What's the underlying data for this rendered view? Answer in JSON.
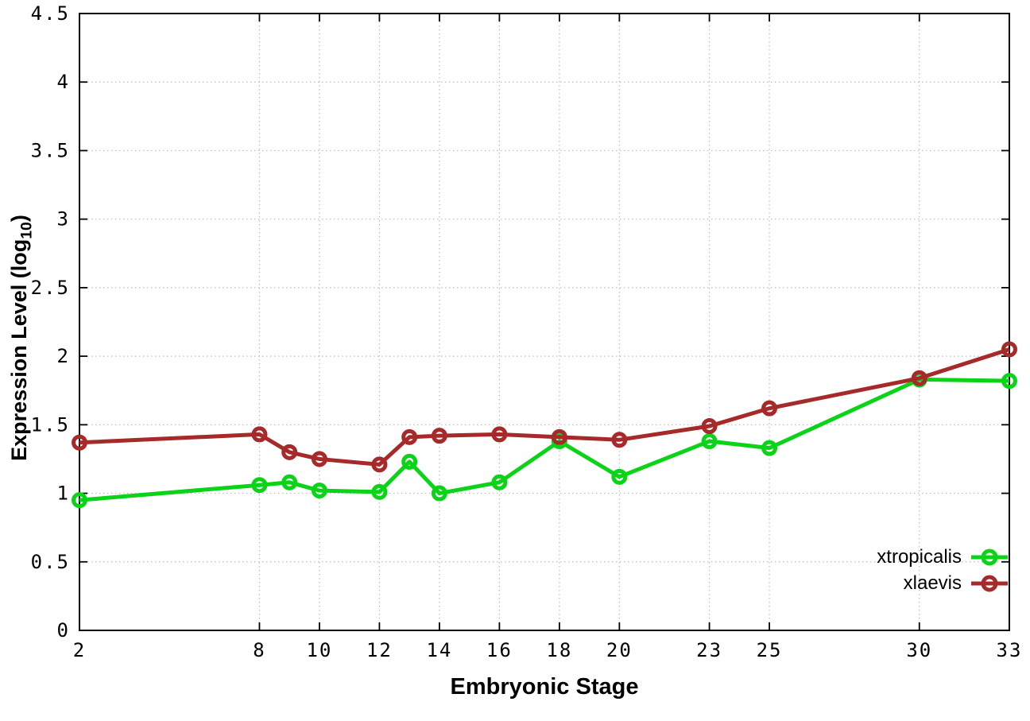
{
  "chart_data": {
    "type": "line",
    "title": "",
    "xlabel": "Embryonic Stage",
    "ylabel": "Expression Level (log10)",
    "ylabel_parts": {
      "prefix": "Expression Level (log",
      "sub": "10",
      "suffix": ")"
    },
    "x": [
      2,
      8,
      9,
      10,
      12,
      13,
      14,
      16,
      18,
      20,
      23,
      25,
      30,
      33
    ],
    "series": [
      {
        "name": "xtropicalis",
        "color": "#0bd318",
        "values": [
          0.95,
          1.06,
          1.08,
          1.02,
          1.01,
          1.23,
          1.0,
          1.08,
          1.38,
          1.12,
          1.38,
          1.33,
          1.83,
          1.82
        ]
      },
      {
        "name": "xlaevis",
        "color": "#a62a2a",
        "values": [
          1.37,
          1.43,
          1.3,
          1.25,
          1.21,
          1.41,
          1.42,
          1.43,
          1.41,
          1.39,
          1.49,
          1.62,
          1.84,
          2.05
        ]
      }
    ],
    "xticks": [
      2,
      8,
      10,
      12,
      14,
      16,
      18,
      20,
      23,
      25,
      30,
      33
    ],
    "xtick_labels": [
      "2",
      "8",
      "10",
      "12",
      "14",
      "16",
      "18",
      "20",
      "23",
      "25",
      "30",
      "33"
    ],
    "yticks": [
      0,
      0.5,
      1,
      1.5,
      2,
      2.5,
      3,
      3.5,
      4,
      4.5
    ],
    "ytick_labels": [
      "0",
      "0.5",
      "1",
      "1.5",
      "2",
      "2.5",
      "3",
      "3.5",
      "4",
      "4.5"
    ],
    "xlim": [
      2,
      33
    ],
    "ylim": [
      0,
      4.5
    ],
    "grid": true,
    "legend_position": "bottom-right",
    "axis_color": "#000000",
    "grid_color": "#bcbcbc",
    "background": "#ffffff"
  }
}
